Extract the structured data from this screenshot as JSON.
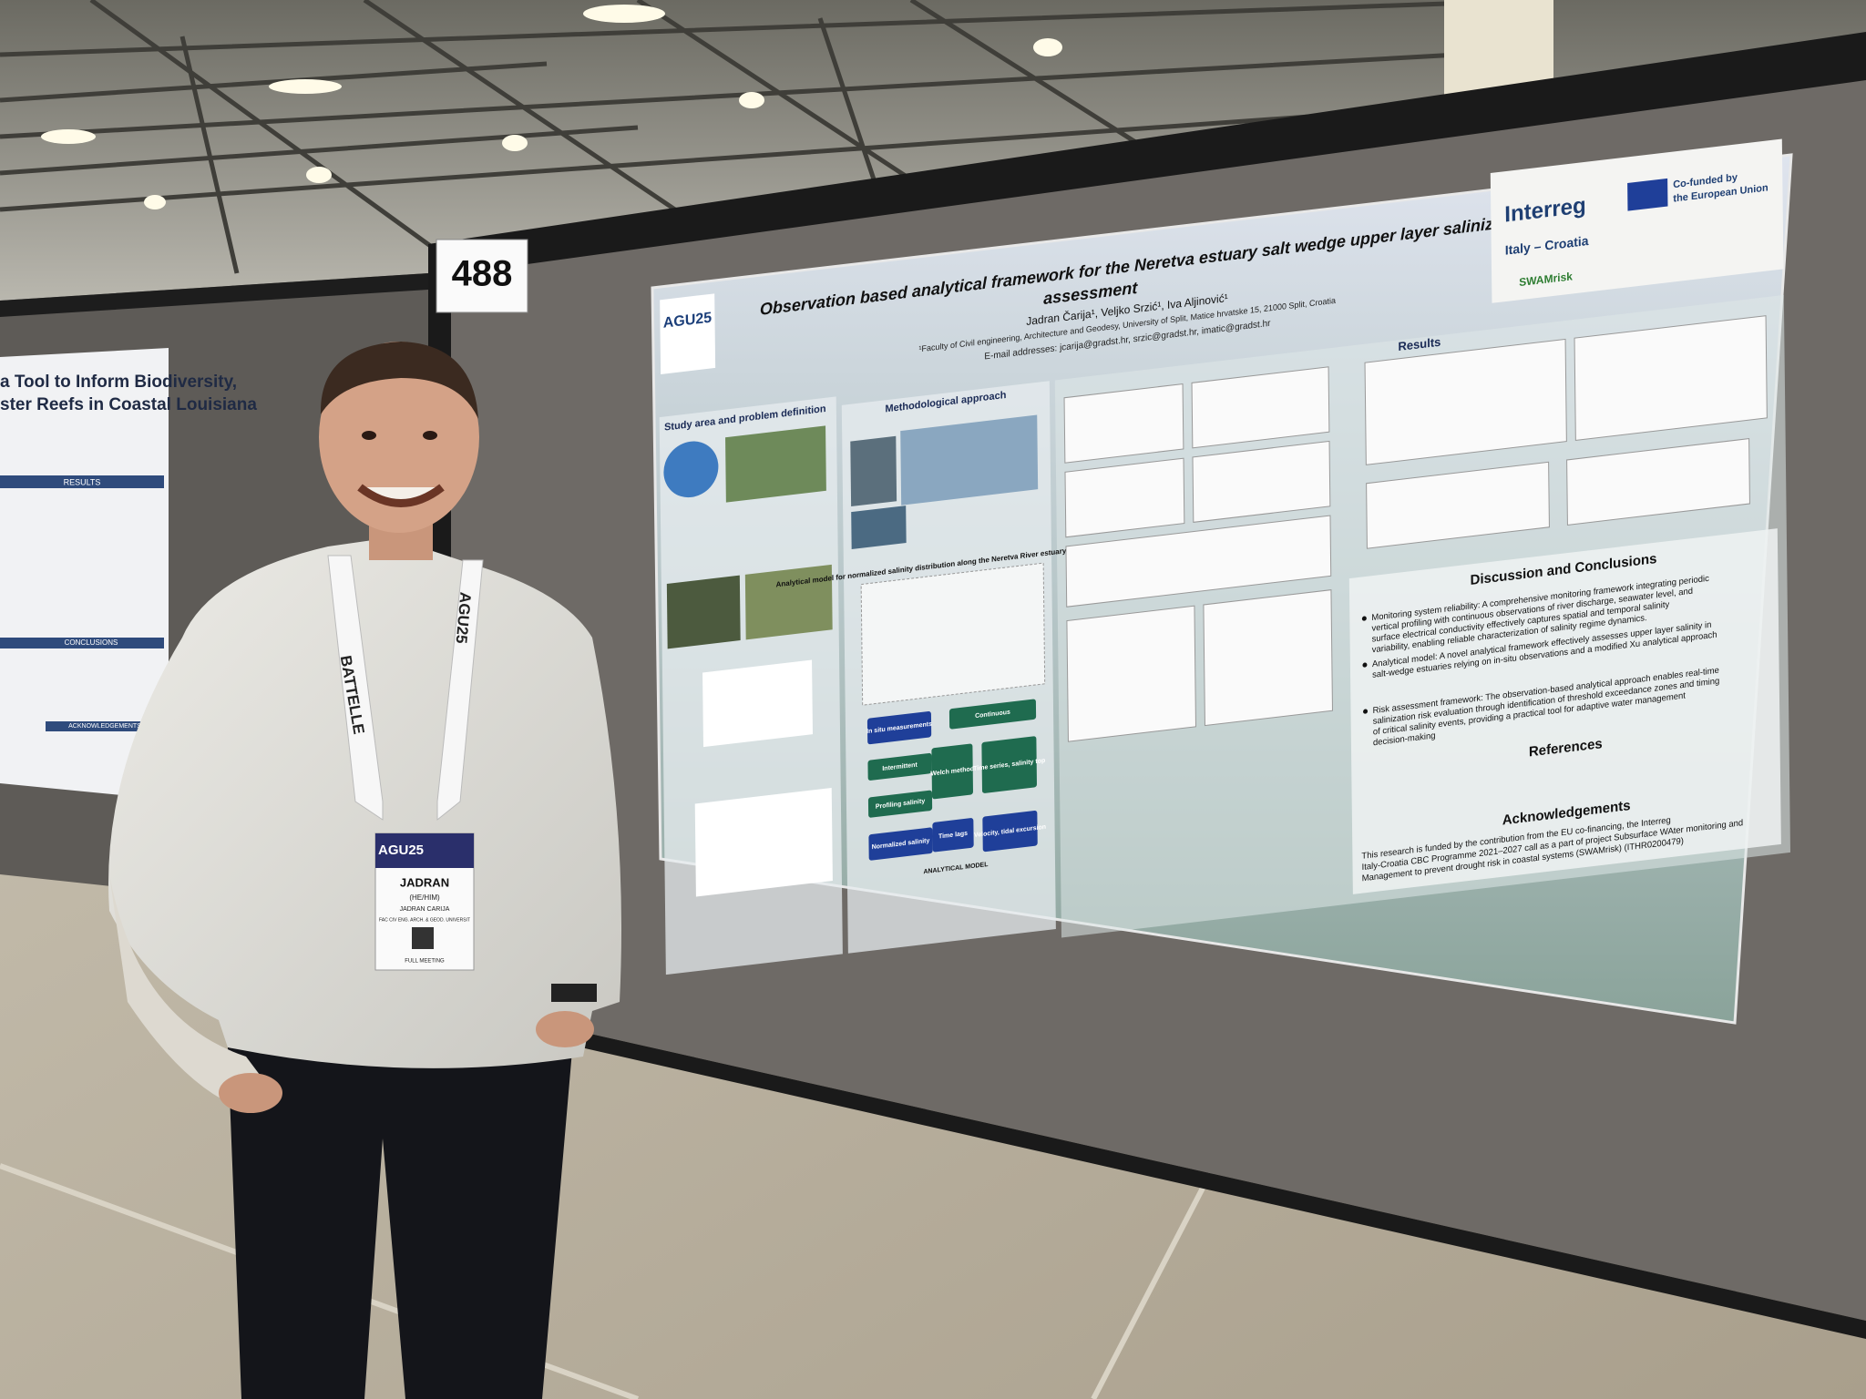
{
  "booth_number": "488",
  "left_poster": {
    "title_lines": [
      "a Tool to Inform Biodiversity,",
      "ster Reefs in Coastal Louisiana"
    ],
    "sections": [
      "RESULTS",
      "CONCLUSIONS",
      "ACKNOWLEDGEMENTS"
    ]
  },
  "poster": {
    "logo": "AGU25",
    "title_lines": [
      "Observation based analytical framework for the Neretva estuary salt wedge upper layer salinization risk",
      "assessment"
    ],
    "authors": "Jadran Čarija¹, Veljko Srzić¹, Iva Aljinović¹",
    "affiliation": "¹Faculty of Civil engineering, Architecture and Geodesy, University of Split, Matice hrvatske 15, 21000 Split, Croatia",
    "emails": "E-mail addresses: jcarija@gradst.hr, srzic@gradst.hr, imatic@gradst.hr",
    "partners": {
      "interreg": "Interreg",
      "programme": "Italy – Croatia",
      "eu": [
        "Co-funded by",
        "the European Union"
      ],
      "project": "SWAMrisk"
    },
    "sections": {
      "study_area": "Study area and problem definition",
      "methodology": "Methodological approach",
      "results": "Results",
      "discussion": "Discussion and Conclusions",
      "references": "References",
      "acknowledgements": "Acknowledgements"
    },
    "model_heading": "Analytical model for normalized salinity distribution along the Neretva River estuary for upper layer",
    "flowchart": [
      "In situ measurements",
      "Continuous",
      "Intermittent",
      "Welch method",
      "Time series, salinity top",
      "Profiling salinity",
      "Normalized salinity",
      "Time lags",
      "Velocity, tidal excursion",
      "ANALYTICAL MODEL"
    ],
    "discussion_points": [
      "Monitoring system reliability: A comprehensive monitoring framework integrating periodic vertical profiling with continuous observations of river discharge, seawater level, and surface electrical conductivity effectively captures spatial and temporal salinity variability, enabling reliable characterization of salinity regime dynamics.",
      "Analytical model: A novel analytical framework effectively assesses upper layer salinity in salt-wedge estuaries relying on in-situ observations and a modified Xu analytical approach",
      "Risk assessment framework: The observation-based analytical approach enables real-time salinization risk evaluation through identification of threshold exceedance zones and timing of critical salinity events, providing a practical tool for adaptive water management decision-making"
    ],
    "acknowledgements_text": "This research is funded by the contribution from the EU co-financing, the Interreg Italy-Croatia CBC Programme 2021–2027 call as a part of project Subsurface WAter monitoring and Management to prevent drought risk in coastal systems (SWAMrisk) (ITHR0200479)"
  },
  "badge": {
    "event": "AGU25",
    "name": "JADRAN",
    "pronouns": "(HE/HIM)",
    "full_name": "JADRAN CARIJA",
    "affiliation": "FAC CIV ENG. ARCH. & GEOD. UNIVERSIT",
    "registration": "FULL MEETING"
  },
  "lanyard": [
    "BATTELLE",
    "AGU25"
  ]
}
